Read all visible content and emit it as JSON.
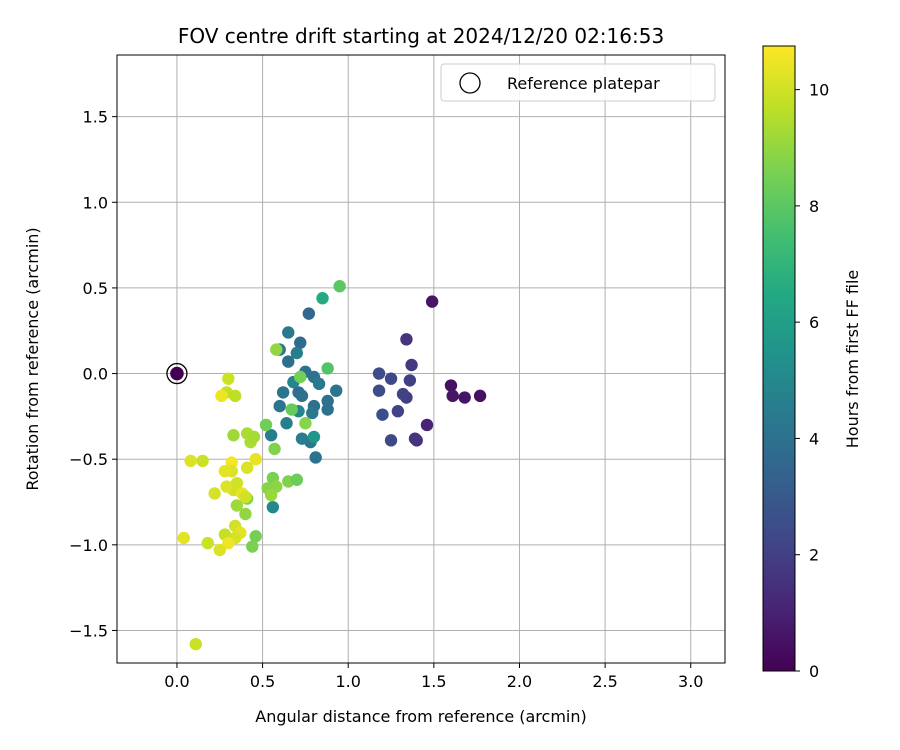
{
  "chart_data": {
    "type": "scatter",
    "title": "FOV centre drift starting at 2024/12/20 02:16:53",
    "xlabel": "Angular distance from reference (arcmin)",
    "ylabel": "Rotation from reference (arcmin)",
    "xlim": [
      -0.35,
      3.2
    ],
    "ylim": [
      -1.69,
      1.86
    ],
    "xticks": [
      0.0,
      0.5,
      1.0,
      1.5,
      2.0,
      2.5,
      3.0
    ],
    "xtick_labels": [
      "0.0",
      "0.5",
      "1.0",
      "1.5",
      "2.0",
      "2.5",
      "3.0"
    ],
    "yticks": [
      -1.5,
      -1.0,
      -0.5,
      0.0,
      0.5,
      1.0,
      1.5
    ],
    "ytick_labels": [
      "−1.5",
      "−1.0",
      "−0.5",
      "0.0",
      "0.5",
      "1.0",
      "1.5"
    ],
    "grid": true,
    "legend": {
      "placement": "top-right",
      "entries": [
        "Reference platepar"
      ]
    },
    "colorbar": {
      "label": "Hours from first FF file",
      "colormap": "viridis",
      "range": [
        0,
        10.75
      ],
      "ticks": [
        0,
        2,
        4,
        6,
        8,
        10
      ],
      "tick_labels": [
        "0",
        "2",
        "4",
        "6",
        "8",
        "10"
      ]
    },
    "reference_point": {
      "x": 0.0,
      "y": 0.0,
      "hours": 0.0
    },
    "points": [
      {
        "x": 1.49,
        "y": 0.42,
        "h": 0.6
      },
      {
        "x": 1.6,
        "y": -0.07,
        "h": 0.5
      },
      {
        "x": 1.61,
        "y": -0.13,
        "h": 0.6
      },
      {
        "x": 1.68,
        "y": -0.14,
        "h": 0.6
      },
      {
        "x": 1.77,
        "y": -0.13,
        "h": 0.5
      },
      {
        "x": 1.46,
        "y": -0.3,
        "h": 1.1
      },
      {
        "x": 1.4,
        "y": -0.39,
        "h": 1.5
      },
      {
        "x": 1.39,
        "y": -0.38,
        "h": 1.6
      },
      {
        "x": 1.34,
        "y": 0.2,
        "h": 1.6
      },
      {
        "x": 1.37,
        "y": 0.05,
        "h": 1.8
      },
      {
        "x": 1.36,
        "y": -0.04,
        "h": 2.0
      },
      {
        "x": 1.34,
        "y": -0.14,
        "h": 1.9
      },
      {
        "x": 1.32,
        "y": -0.12,
        "h": 2.1
      },
      {
        "x": 1.29,
        "y": -0.22,
        "h": 2.1
      },
      {
        "x": 1.25,
        "y": -0.03,
        "h": 2.3
      },
      {
        "x": 1.25,
        "y": -0.39,
        "h": 2.4
      },
      {
        "x": 1.18,
        "y": 0.0,
        "h": 2.5
      },
      {
        "x": 1.18,
        "y": -0.1,
        "h": 2.5
      },
      {
        "x": 1.2,
        "y": -0.24,
        "h": 2.6
      },
      {
        "x": 0.77,
        "y": 0.35,
        "h": 3.6
      },
      {
        "x": 0.65,
        "y": 0.24,
        "h": 4.3
      },
      {
        "x": 0.72,
        "y": 0.18,
        "h": 3.8
      },
      {
        "x": 0.6,
        "y": 0.14,
        "h": 4.2
      },
      {
        "x": 0.7,
        "y": 0.12,
        "h": 4.6
      },
      {
        "x": 0.65,
        "y": 0.07,
        "h": 3.9
      },
      {
        "x": 0.75,
        "y": 0.01,
        "h": 4.0
      },
      {
        "x": 0.68,
        "y": -0.05,
        "h": 4.8
      },
      {
        "x": 0.62,
        "y": -0.11,
        "h": 4.1
      },
      {
        "x": 0.71,
        "y": -0.11,
        "h": 3.8
      },
      {
        "x": 0.73,
        "y": -0.13,
        "h": 4.0
      },
      {
        "x": 0.8,
        "y": -0.02,
        "h": 4.1
      },
      {
        "x": 0.83,
        "y": -0.06,
        "h": 4.4
      },
      {
        "x": 0.93,
        "y": -0.1,
        "h": 4.2
      },
      {
        "x": 0.88,
        "y": -0.16,
        "h": 4.0
      },
      {
        "x": 0.8,
        "y": -0.19,
        "h": 3.9
      },
      {
        "x": 0.88,
        "y": -0.21,
        "h": 4.0
      },
      {
        "x": 0.79,
        "y": -0.23,
        "h": 4.3
      },
      {
        "x": 0.71,
        "y": -0.22,
        "h": 4.9
      },
      {
        "x": 0.6,
        "y": -0.19,
        "h": 4.2
      },
      {
        "x": 0.64,
        "y": -0.29,
        "h": 4.6
      },
      {
        "x": 0.78,
        "y": -0.4,
        "h": 4.3
      },
      {
        "x": 0.73,
        "y": -0.38,
        "h": 4.5
      },
      {
        "x": 0.55,
        "y": -0.36,
        "h": 4.6
      },
      {
        "x": 0.81,
        "y": -0.49,
        "h": 4.1
      },
      {
        "x": 0.8,
        "y": -0.37,
        "h": 5.5
      },
      {
        "x": 0.56,
        "y": -0.78,
        "h": 5.0
      },
      {
        "x": 0.85,
        "y": 0.44,
        "h": 6.5
      },
      {
        "x": 0.95,
        "y": 0.51,
        "h": 8.0
      },
      {
        "x": 0.88,
        "y": 0.03,
        "h": 7.8
      },
      {
        "x": 0.72,
        "y": -0.02,
        "h": 8.5
      },
      {
        "x": 0.67,
        "y": -0.21,
        "h": 8.2
      },
      {
        "x": 0.75,
        "y": -0.29,
        "h": 8.8
      },
      {
        "x": 0.58,
        "y": 0.14,
        "h": 9.0
      },
      {
        "x": 0.52,
        "y": -0.3,
        "h": 8.4
      },
      {
        "x": 0.57,
        "y": -0.44,
        "h": 8.7
      },
      {
        "x": 0.56,
        "y": -0.61,
        "h": 8.6
      },
      {
        "x": 0.58,
        "y": -0.66,
        "h": 8.9
      },
      {
        "x": 0.53,
        "y": -0.67,
        "h": 8.8
      },
      {
        "x": 0.55,
        "y": -0.71,
        "h": 9.1
      },
      {
        "x": 0.65,
        "y": -0.63,
        "h": 8.7
      },
      {
        "x": 0.7,
        "y": -0.62,
        "h": 8.3
      },
      {
        "x": 0.46,
        "y": -0.95,
        "h": 8.5
      },
      {
        "x": 0.44,
        "y": -1.01,
        "h": 8.6
      },
      {
        "x": 0.4,
        "y": -0.82,
        "h": 9.0
      },
      {
        "x": 0.41,
        "y": -0.73,
        "h": 8.7
      },
      {
        "x": 0.35,
        "y": -0.77,
        "h": 9.2
      },
      {
        "x": 0.33,
        "y": -0.36,
        "h": 9.2
      },
      {
        "x": 0.41,
        "y": -0.35,
        "h": 9.4
      },
      {
        "x": 0.43,
        "y": -0.4,
        "h": 9.4
      },
      {
        "x": 0.45,
        "y": -0.37,
        "h": 9.3
      },
      {
        "x": 0.29,
        "y": -0.11,
        "h": 9.8
      },
      {
        "x": 0.3,
        "y": -0.03,
        "h": 9.9
      },
      {
        "x": 0.34,
        "y": -0.13,
        "h": 9.7
      },
      {
        "x": 0.26,
        "y": -0.13,
        "h": 10.5
      },
      {
        "x": 0.46,
        "y": -0.5,
        "h": 10.4
      },
      {
        "x": 0.41,
        "y": -0.55,
        "h": 10.2
      },
      {
        "x": 0.32,
        "y": -0.52,
        "h": 10.6
      },
      {
        "x": 0.32,
        "y": -0.57,
        "h": 10.2
      },
      {
        "x": 0.28,
        "y": -0.57,
        "h": 10.3
      },
      {
        "x": 0.35,
        "y": -0.64,
        "h": 10.0
      },
      {
        "x": 0.33,
        "y": -0.68,
        "h": 10.0
      },
      {
        "x": 0.29,
        "y": -0.66,
        "h": 10.2
      },
      {
        "x": 0.38,
        "y": -0.7,
        "h": 10.4
      },
      {
        "x": 0.4,
        "y": -0.72,
        "h": 10.0
      },
      {
        "x": 0.22,
        "y": -0.7,
        "h": 10.1
      },
      {
        "x": 0.15,
        "y": -0.51,
        "h": 9.9
      },
      {
        "x": 0.08,
        "y": -0.51,
        "h": 10.2
      },
      {
        "x": 0.34,
        "y": -0.89,
        "h": 10.0
      },
      {
        "x": 0.37,
        "y": -0.93,
        "h": 10.3
      },
      {
        "x": 0.34,
        "y": -0.96,
        "h": 10.1
      },
      {
        "x": 0.28,
        "y": -0.94,
        "h": 9.8
      },
      {
        "x": 0.3,
        "y": -0.99,
        "h": 10.5
      },
      {
        "x": 0.25,
        "y": -1.03,
        "h": 10.2
      },
      {
        "x": 0.18,
        "y": -0.99,
        "h": 9.9
      },
      {
        "x": 0.04,
        "y": -0.96,
        "h": 10.3
      },
      {
        "x": 0.11,
        "y": -1.58,
        "h": 9.9
      }
    ]
  }
}
